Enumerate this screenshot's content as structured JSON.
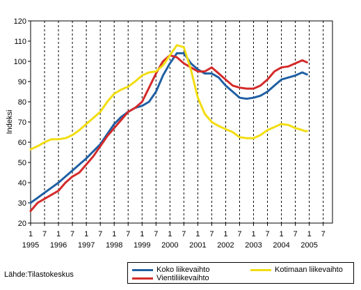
{
  "chart_data": {
    "type": "line",
    "ylabel": "Indeksi",
    "ylim": [
      20,
      120
    ],
    "yticks": [
      20,
      30,
      40,
      50,
      60,
      70,
      80,
      90,
      100,
      110,
      120
    ],
    "xlim": [
      1995.0,
      2005.833
    ],
    "xticks_months": [
      "1",
      "7",
      "1",
      "7",
      "1",
      "7",
      "1",
      "7",
      "1",
      "7",
      "1",
      "7",
      "1",
      "7",
      "1",
      "7",
      "1",
      "7",
      "1",
      "7",
      "1",
      "7"
    ],
    "xticks_years": [
      "1995",
      "1996",
      "1997",
      "1998",
      "1999",
      "2000",
      "2001",
      "2002",
      "2003",
      "2004",
      "2005"
    ],
    "grid": "vertical dashed",
    "legend_position": "bottom-right",
    "series": [
      {
        "name": "Koko liikevaihto",
        "color": "#1f5fa3",
        "points": [
          [
            1995.0,
            30
          ],
          [
            1995.25,
            32.5
          ],
          [
            1995.5,
            35
          ],
          [
            1995.75,
            37.5
          ],
          [
            1996.0,
            40
          ],
          [
            1996.25,
            43
          ],
          [
            1996.5,
            46
          ],
          [
            1996.75,
            49
          ],
          [
            1997.0,
            52
          ],
          [
            1997.25,
            55.5
          ],
          [
            1997.5,
            59
          ],
          [
            1997.75,
            64
          ],
          [
            1998.0,
            69
          ],
          [
            1998.25,
            72.5
          ],
          [
            1998.5,
            75
          ],
          [
            1998.75,
            77
          ],
          [
            1999.0,
            78
          ],
          [
            1999.25,
            80
          ],
          [
            1999.5,
            85
          ],
          [
            1999.75,
            93
          ],
          [
            2000.0,
            99
          ],
          [
            2000.25,
            104
          ],
          [
            2000.5,
            104
          ],
          [
            2000.75,
            99
          ],
          [
            2001.0,
            96
          ],
          [
            2001.25,
            94
          ],
          [
            2001.5,
            94
          ],
          [
            2001.75,
            92
          ],
          [
            2002.0,
            88
          ],
          [
            2002.25,
            85
          ],
          [
            2002.5,
            82
          ],
          [
            2002.75,
            81.5
          ],
          [
            2003.0,
            82
          ],
          [
            2003.25,
            83
          ],
          [
            2003.5,
            85
          ],
          [
            2003.75,
            88
          ],
          [
            2004.0,
            91
          ],
          [
            2004.25,
            92
          ],
          [
            2004.5,
            93
          ],
          [
            2004.75,
            94.5
          ],
          [
            2004.833,
            94
          ],
          [
            2004.917,
            93.5
          ]
        ]
      },
      {
        "name": "Vientiliikevaihto",
        "color": "#d42a2a",
        "points": [
          [
            1995.0,
            26
          ],
          [
            1995.25,
            30
          ],
          [
            1995.5,
            32
          ],
          [
            1995.75,
            34
          ],
          [
            1996.0,
            36
          ],
          [
            1996.25,
            40
          ],
          [
            1996.5,
            43
          ],
          [
            1996.75,
            45
          ],
          [
            1997.0,
            49
          ],
          [
            1997.25,
            53
          ],
          [
            1997.5,
            58
          ],
          [
            1997.75,
            63
          ],
          [
            1998.0,
            67
          ],
          [
            1998.25,
            71
          ],
          [
            1998.5,
            75
          ],
          [
            1998.75,
            77
          ],
          [
            1999.0,
            80
          ],
          [
            1999.25,
            87
          ],
          [
            1999.5,
            94
          ],
          [
            1999.75,
            100
          ],
          [
            2000.0,
            103
          ],
          [
            2000.25,
            102
          ],
          [
            2000.5,
            99
          ],
          [
            2000.75,
            97
          ],
          [
            2001.0,
            95
          ],
          [
            2001.25,
            95
          ],
          [
            2001.5,
            97
          ],
          [
            2001.75,
            94
          ],
          [
            2002.0,
            91
          ],
          [
            2002.25,
            88
          ],
          [
            2002.5,
            87
          ],
          [
            2002.75,
            86.5
          ],
          [
            2003.0,
            86.5
          ],
          [
            2003.25,
            88
          ],
          [
            2003.5,
            91
          ],
          [
            2003.75,
            95
          ],
          [
            2004.0,
            97
          ],
          [
            2004.25,
            97.5
          ],
          [
            2004.5,
            99
          ],
          [
            2004.75,
            100.5
          ],
          [
            2004.833,
            100
          ],
          [
            2004.917,
            99.5
          ]
        ]
      },
      {
        "name": "Kotimaan liikevaihto",
        "color": "#f2dd10",
        "points": [
          [
            1995.0,
            56.5
          ],
          [
            1995.25,
            58
          ],
          [
            1995.5,
            60
          ],
          [
            1995.75,
            61.5
          ],
          [
            1996.0,
            61.5
          ],
          [
            1996.25,
            62
          ],
          [
            1996.5,
            63.5
          ],
          [
            1996.75,
            66
          ],
          [
            1997.0,
            69
          ],
          [
            1997.25,
            72
          ],
          [
            1997.5,
            75
          ],
          [
            1997.75,
            80
          ],
          [
            1998.0,
            84
          ],
          [
            1998.25,
            86
          ],
          [
            1998.5,
            87.5
          ],
          [
            1998.75,
            90
          ],
          [
            1999.0,
            93
          ],
          [
            1999.25,
            94.5
          ],
          [
            1999.5,
            95
          ],
          [
            1999.75,
            98
          ],
          [
            2000.0,
            103
          ],
          [
            2000.25,
            108
          ],
          [
            2000.5,
            107
          ],
          [
            2000.75,
            96
          ],
          [
            2001.0,
            82
          ],
          [
            2001.25,
            74
          ],
          [
            2001.5,
            70
          ],
          [
            2001.75,
            68
          ],
          [
            2002.0,
            66.5
          ],
          [
            2002.25,
            65
          ],
          [
            2002.5,
            62.5
          ],
          [
            2002.75,
            62
          ],
          [
            2003.0,
            62
          ],
          [
            2003.25,
            63.5
          ],
          [
            2003.5,
            66
          ],
          [
            2003.75,
            67.5
          ],
          [
            2004.0,
            69
          ],
          [
            2004.25,
            68.5
          ],
          [
            2004.5,
            67
          ],
          [
            2004.75,
            66
          ],
          [
            2004.833,
            65.5
          ],
          [
            2004.917,
            65.5
          ]
        ]
      }
    ]
  },
  "source_text": "Lähde:Tilastokeskus"
}
